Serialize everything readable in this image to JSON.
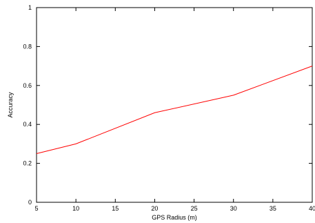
{
  "chart_data": {
    "type": "line",
    "title": "",
    "xlabel": "GPS Radius (m)",
    "ylabel": "Accuracy",
    "xlim": [
      5,
      40
    ],
    "ylim": [
      0,
      1
    ],
    "xticks": [
      "5",
      "10",
      "15",
      "20",
      "25",
      "30",
      "35",
      "40"
    ],
    "yticks": [
      "0",
      "0.2",
      "0.4",
      "0.6",
      "0.8",
      "1"
    ],
    "grid": false,
    "legend": "none",
    "series": [
      {
        "color": "#ff0000",
        "x": [
          5,
          10,
          20,
          30,
          40
        ],
        "y": [
          0.25,
          0.3,
          0.46,
          0.55,
          0.7
        ]
      }
    ]
  }
}
